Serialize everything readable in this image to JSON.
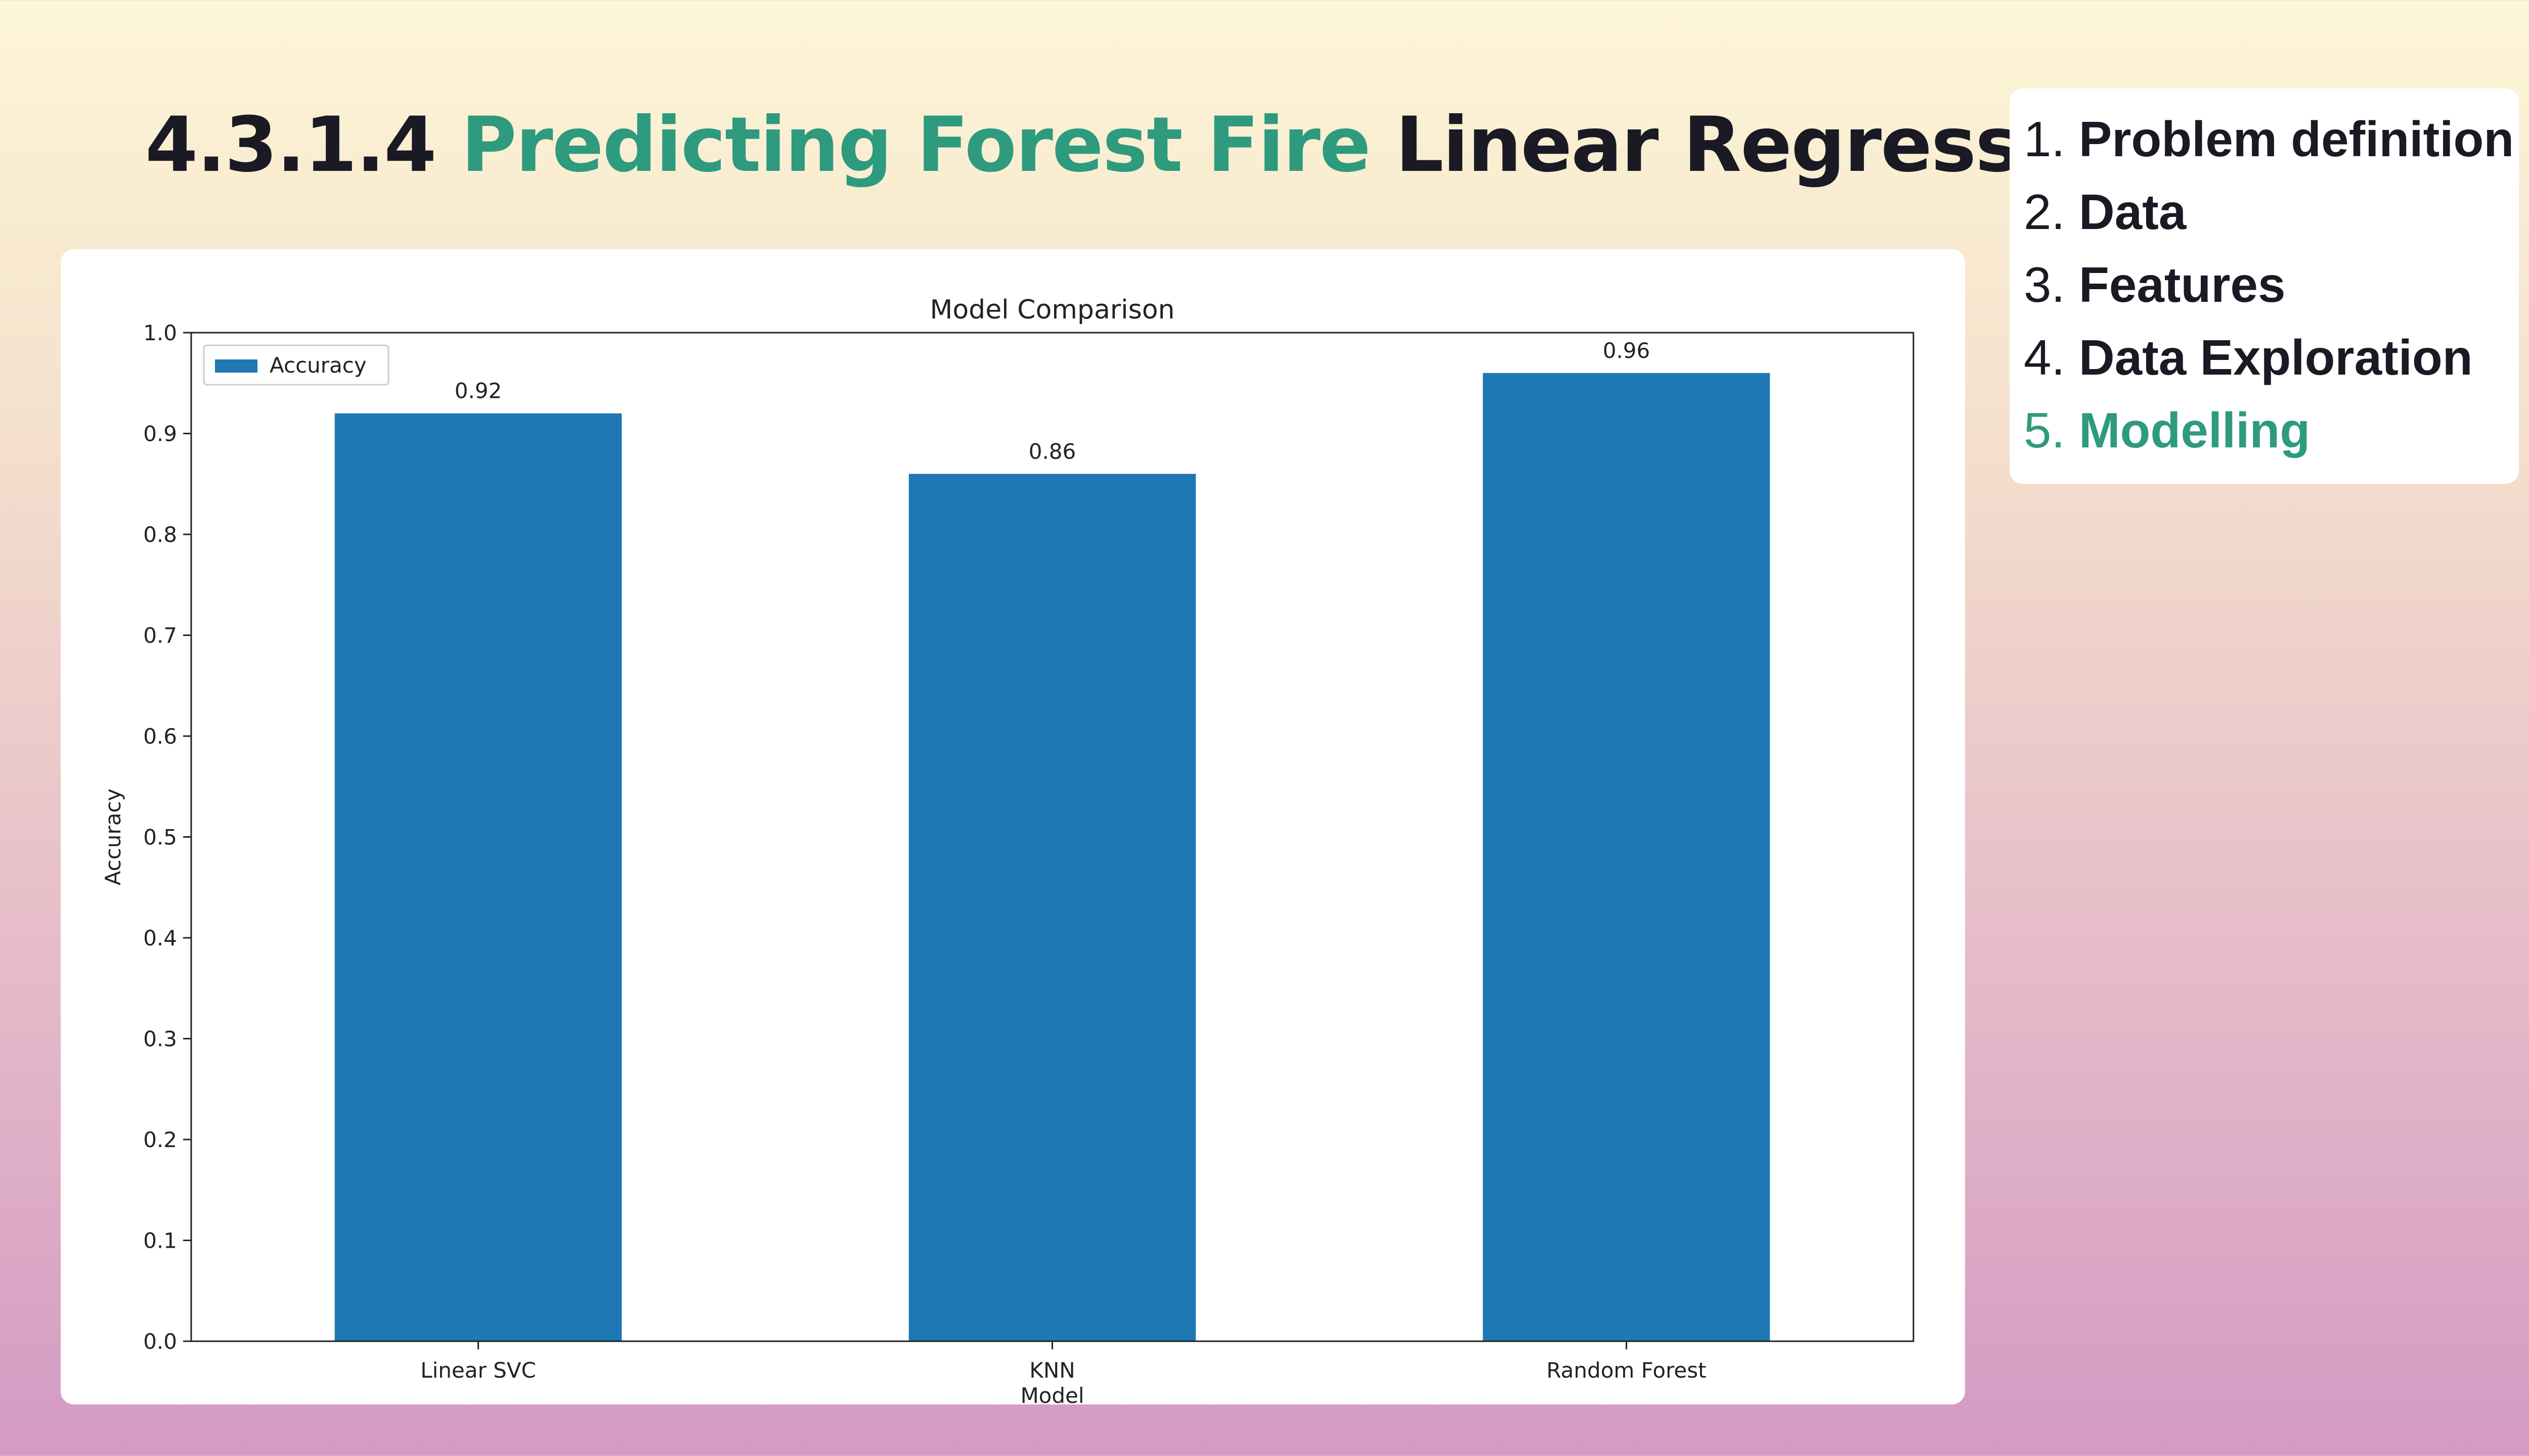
{
  "slide": {
    "title_prefix": "4.3.1.4",
    "title_accent": "Predicting Forest Fire",
    "title_suffix": "Linear Regression"
  },
  "toc": {
    "items": [
      {
        "num": "1.",
        "label": "Problem definition",
        "active": false
      },
      {
        "num": "2.",
        "label": "Data",
        "active": false
      },
      {
        "num": "3.",
        "label": "Features",
        "active": false
      },
      {
        "num": "4.",
        "label": "Data Exploration",
        "active": false
      },
      {
        "num": "5.",
        "label": "Modelling",
        "active": true
      }
    ],
    "active_color": "#2e9a7e"
  },
  "chart_data": {
    "type": "bar",
    "title": "Model Comparison",
    "xlabel": "Model",
    "ylabel": "Accuracy",
    "categories": [
      "Linear SVC",
      "KNN",
      "Random Forest"
    ],
    "series": [
      {
        "name": "Accuracy",
        "values": [
          0.92,
          0.86,
          0.96
        ],
        "labels": [
          "0.92",
          "0.86",
          "0.96"
        ],
        "color": "#1f77b4"
      }
    ],
    "ylim": [
      0,
      1.0
    ],
    "yticks": [
      "0.0",
      "0.1",
      "0.2",
      "0.3",
      "0.4",
      "0.5",
      "0.6",
      "0.7",
      "0.8",
      "0.9",
      "1.0"
    ],
    "legend": "top-left",
    "grid": false
  }
}
